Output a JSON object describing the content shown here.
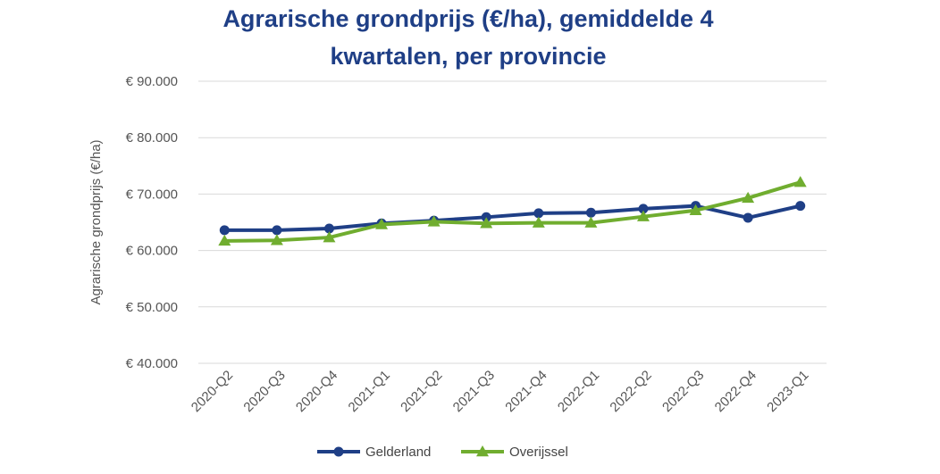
{
  "chart_data": {
    "type": "line",
    "title_lines": [
      "Agrarische grondprijs (€/ha), gemiddelde 4",
      "kwartalen, per provincie"
    ],
    "xlabel": "",
    "ylabel": "Agrarische grondprijs (€/ha)",
    "ylim": [
      40000,
      90000
    ],
    "yticks": [
      {
        "value": 90000,
        "label": "€ 90.000"
      },
      {
        "value": 80000,
        "label": "€ 80.000"
      },
      {
        "value": 70000,
        "label": "€ 70.000"
      },
      {
        "value": 60000,
        "label": "€ 60.000"
      },
      {
        "value": 50000,
        "label": "€ 50.000"
      },
      {
        "value": 40000,
        "label": "€ 40.000"
      }
    ],
    "categories": [
      "2020-Q2",
      "2020-Q3",
      "2020-Q4",
      "2021-Q1",
      "2021-Q2",
      "2021-Q3",
      "2021-Q4",
      "2022-Q1",
      "2022-Q2",
      "2022-Q3",
      "2022-Q4",
      "2023-Q1"
    ],
    "grid": true,
    "legend_position": "bottom",
    "series": [
      {
        "name": "Gelderland",
        "color": "#1f3f86",
        "marker": "circle",
        "values": [
          63600,
          63600,
          63900,
          64800,
          65300,
          65900,
          66600,
          66700,
          67400,
          67900,
          65800,
          67900
        ]
      },
      {
        "name": "Overijssel",
        "color": "#70ad2f",
        "marker": "triangle",
        "values": [
          61700,
          61800,
          62300,
          64600,
          65100,
          64800,
          64900,
          64900,
          66000,
          67100,
          69300,
          72100
        ]
      }
    ]
  }
}
